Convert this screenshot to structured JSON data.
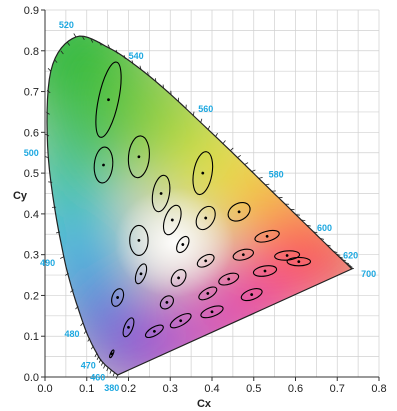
{
  "chart_data": {
    "type": "scatter",
    "title": "",
    "xlabel": "Cx",
    "ylabel": "Cy",
    "xlim": [
      0.0,
      0.8
    ],
    "ylim": [
      0.0,
      0.9
    ],
    "grid": true,
    "colors": {
      "label": "#1ea8e0",
      "ellipse": "#000000",
      "axis": "#333333",
      "grid": "#d0d0d0"
    },
    "x_ticks": [
      "0.0",
      "0.1",
      "0.2",
      "0.3",
      "0.4",
      "0.5",
      "0.6",
      "0.7",
      "0.8"
    ],
    "y_ticks": [
      "0.0",
      "0.1",
      "0.2",
      "0.3",
      "0.4",
      "0.5",
      "0.6",
      "0.7",
      "0.8",
      "0.9"
    ],
    "spectral_locus": [
      {
        "nm": 380,
        "x": 0.174,
        "y": 0.005
      },
      {
        "nm": 460,
        "x": 0.144,
        "y": 0.03
      },
      {
        "nm": 470,
        "x": 0.124,
        "y": 0.058
      },
      {
        "nm": 480,
        "x": 0.091,
        "y": 0.133
      },
      {
        "nm": 490,
        "x": 0.045,
        "y": 0.295
      },
      {
        "nm": 500,
        "x": 0.008,
        "y": 0.538
      },
      {
        "nm": 510,
        "x": 0.014,
        "y": 0.75
      },
      {
        "nm": 520,
        "x": 0.074,
        "y": 0.834
      },
      {
        "nm": 530,
        "x": 0.155,
        "y": 0.806
      },
      {
        "nm": 540,
        "x": 0.23,
        "y": 0.754
      },
      {
        "nm": 550,
        "x": 0.302,
        "y": 0.692
      },
      {
        "nm": 560,
        "x": 0.373,
        "y": 0.624
      },
      {
        "nm": 570,
        "x": 0.444,
        "y": 0.555
      },
      {
        "nm": 580,
        "x": 0.512,
        "y": 0.487
      },
      {
        "nm": 590,
        "x": 0.575,
        "y": 0.424
      },
      {
        "nm": 600,
        "x": 0.627,
        "y": 0.372
      },
      {
        "nm": 620,
        "x": 0.691,
        "y": 0.308
      },
      {
        "nm": 640,
        "x": 0.719,
        "y": 0.281
      },
      {
        "nm": 700,
        "x": 0.735,
        "y": 0.265
      }
    ],
    "wavelength_labels": [
      {
        "text": "520",
        "nm": 520
      },
      {
        "text": "540",
        "nm": 540
      },
      {
        "text": "560",
        "nm": 560
      },
      {
        "text": "580",
        "nm": 580
      },
      {
        "text": "600",
        "nm": 600
      },
      {
        "text": "620",
        "nm": 620
      },
      {
        "text": "700",
        "nm": 700
      },
      {
        "text": "500",
        "nm": 500
      },
      {
        "text": "490",
        "nm": 490
      },
      {
        "text": "480",
        "nm": 480
      },
      {
        "text": "470",
        "nm": 470
      },
      {
        "text": "460",
        "nm": 460
      },
      {
        "text": "380",
        "nm": 380
      }
    ],
    "ellipses": [
      {
        "x": 0.16,
        "y": 0.057,
        "a": 0.01,
        "b": 0.003,
        "angle": 65
      },
      {
        "x": 0.174,
        "y": 0.195,
        "a": 0.022,
        "b": 0.013,
        "angle": 70
      },
      {
        "x": 0.2,
        "y": 0.122,
        "a": 0.024,
        "b": 0.01,
        "angle": 68
      },
      {
        "x": 0.23,
        "y": 0.253,
        "a": 0.025,
        "b": 0.011,
        "angle": 70
      },
      {
        "x": 0.225,
        "y": 0.335,
        "a": 0.036,
        "b": 0.022,
        "angle": 90
      },
      {
        "x": 0.152,
        "y": 0.68,
        "a": 0.092,
        "b": 0.024,
        "angle": 78
      },
      {
        "x": 0.14,
        "y": 0.52,
        "a": 0.043,
        "b": 0.022,
        "angle": 85
      },
      {
        "x": 0.225,
        "y": 0.54,
        "a": 0.05,
        "b": 0.025,
        "angle": 85
      },
      {
        "x": 0.278,
        "y": 0.45,
        "a": 0.044,
        "b": 0.02,
        "angle": 80
      },
      {
        "x": 0.305,
        "y": 0.385,
        "a": 0.037,
        "b": 0.018,
        "angle": 70
      },
      {
        "x": 0.262,
        "y": 0.112,
        "a": 0.024,
        "b": 0.01,
        "angle": 30
      },
      {
        "x": 0.292,
        "y": 0.183,
        "a": 0.018,
        "b": 0.013,
        "angle": 45
      },
      {
        "x": 0.32,
        "y": 0.243,
        "a": 0.022,
        "b": 0.015,
        "angle": 55
      },
      {
        "x": 0.33,
        "y": 0.325,
        "a": 0.021,
        "b": 0.012,
        "angle": 60
      },
      {
        "x": 0.325,
        "y": 0.138,
        "a": 0.028,
        "b": 0.011,
        "angle": 30
      },
      {
        "x": 0.39,
        "y": 0.205,
        "a": 0.024,
        "b": 0.011,
        "angle": 30
      },
      {
        "x": 0.385,
        "y": 0.285,
        "a": 0.022,
        "b": 0.012,
        "angle": 30
      },
      {
        "x": 0.378,
        "y": 0.5,
        "a": 0.052,
        "b": 0.022,
        "angle": 80
      },
      {
        "x": 0.385,
        "y": 0.39,
        "a": 0.03,
        "b": 0.02,
        "angle": 60
      },
      {
        "x": 0.4,
        "y": 0.16,
        "a": 0.028,
        "b": 0.011,
        "angle": 20
      },
      {
        "x": 0.44,
        "y": 0.24,
        "a": 0.025,
        "b": 0.012,
        "angle": 20
      },
      {
        "x": 0.465,
        "y": 0.405,
        "a": 0.028,
        "b": 0.02,
        "angle": 30
      },
      {
        "x": 0.475,
        "y": 0.3,
        "a": 0.025,
        "b": 0.012,
        "angle": 15
      },
      {
        "x": 0.495,
        "y": 0.202,
        "a": 0.026,
        "b": 0.012,
        "angle": 20
      },
      {
        "x": 0.532,
        "y": 0.345,
        "a": 0.03,
        "b": 0.012,
        "angle": 15
      },
      {
        "x": 0.527,
        "y": 0.26,
        "a": 0.028,
        "b": 0.012,
        "angle": 10
      },
      {
        "x": 0.58,
        "y": 0.298,
        "a": 0.03,
        "b": 0.011,
        "angle": 5
      },
      {
        "x": 0.608,
        "y": 0.283,
        "a": 0.028,
        "b": 0.01,
        "angle": 0
      }
    ]
  }
}
